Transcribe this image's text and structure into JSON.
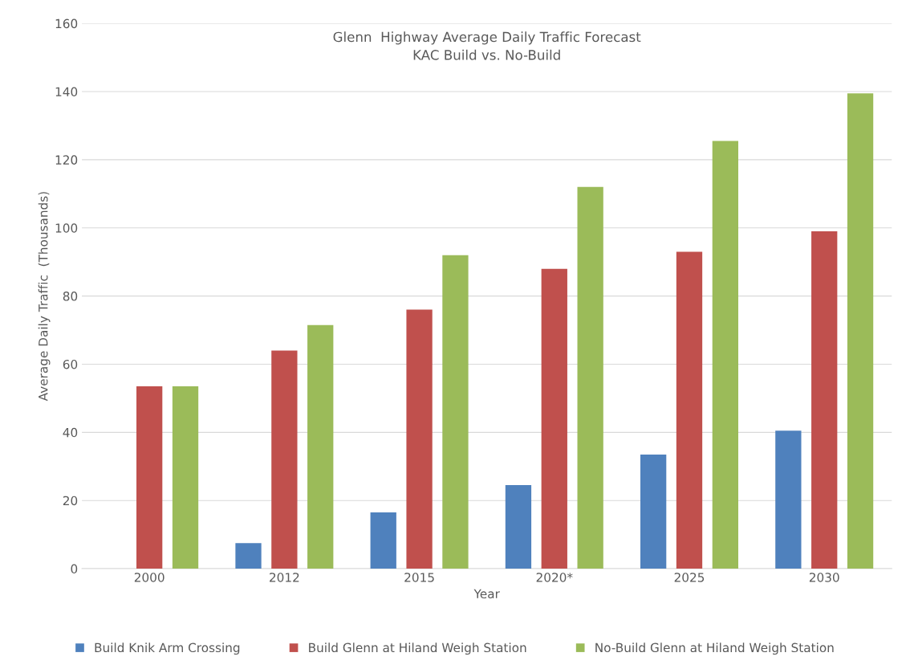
{
  "chart_data": {
    "type": "bar",
    "title": "Glenn  Highway Average Daily Traffic Forecast\nKAC Build vs. No-Build",
    "xlabel": "Year",
    "ylabel": "Average Daily Traffic  (Thousands)",
    "categories": [
      "2000",
      "2012",
      "2015",
      "2020*",
      "2025",
      "2030"
    ],
    "series": [
      {
        "name": "Build Knik Arm Crossing",
        "color": "#4f81bd",
        "values": [
          null,
          7.5,
          16.5,
          24.5,
          33.5,
          40.5
        ]
      },
      {
        "name": "Build Glenn at Hiland Weigh Station",
        "color": "#c0504d",
        "values": [
          53.5,
          64,
          76,
          88,
          93,
          99
        ]
      },
      {
        "name": "No-Build Glenn at Hiland Weigh Station",
        "color": "#9bbb59",
        "values": [
          53.5,
          71.5,
          92,
          112,
          125.5,
          139.5
        ]
      }
    ],
    "ylim": [
      0,
      160
    ],
    "yticks": [
      0,
      20,
      40,
      60,
      80,
      100,
      120,
      140,
      160
    ],
    "grid": "y",
    "legend": "bottom"
  }
}
